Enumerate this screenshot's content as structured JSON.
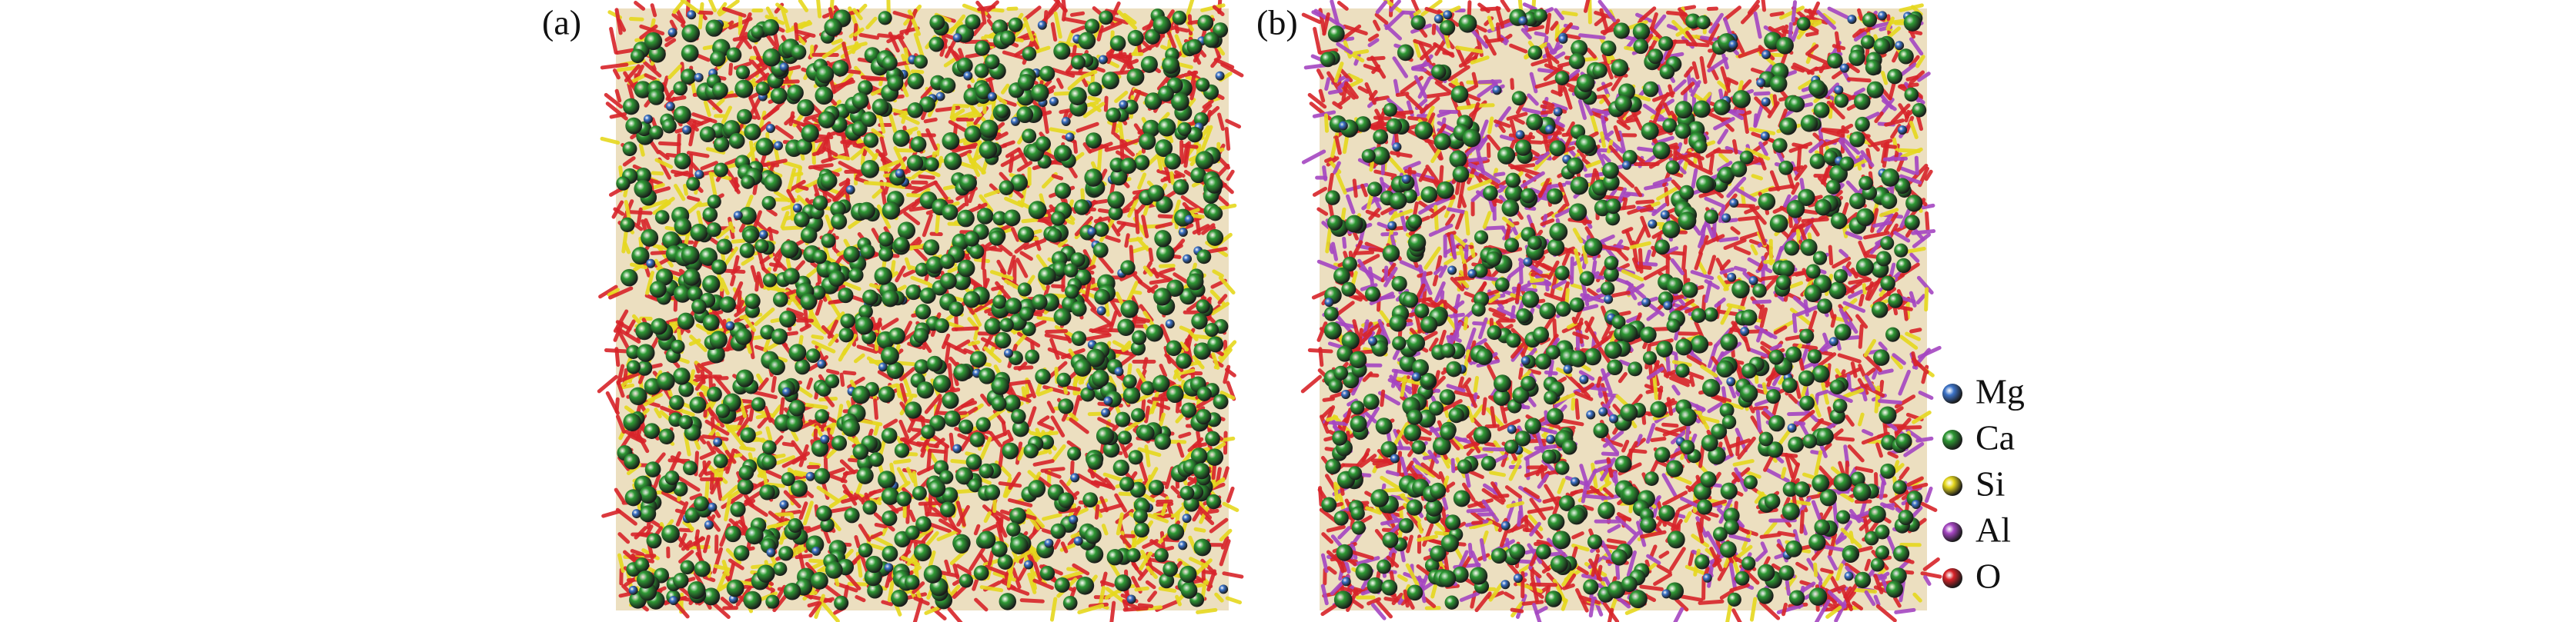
{
  "panels": [
    {
      "label": "(a)"
    },
    {
      "label": "(b)"
    }
  ],
  "legend": [
    {
      "name": "Mg",
      "color": "#3d74c9"
    },
    {
      "name": "Ca",
      "color": "#2f9a35"
    },
    {
      "name": "Si",
      "color": "#e6d81e"
    },
    {
      "name": "Al",
      "color": "#a546c2"
    },
    {
      "name": "O",
      "color": "#d8242a"
    }
  ]
}
